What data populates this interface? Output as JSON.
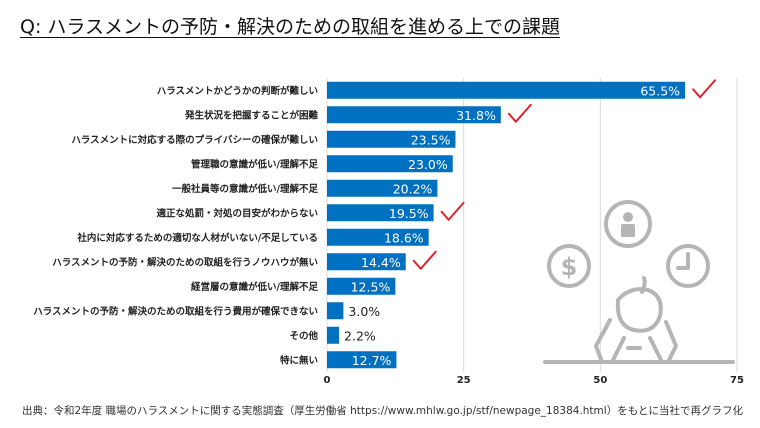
{
  "title": "Q: ハラスメントの予防・解決のための取組を進める上での課題",
  "source": "出典：令和2年度 職場のハラスメントに関する実態調査（厚生労働省 https://www.mhlw.go.jp/stf/newpage_18384.html）をもとに当社で再グラフ化",
  "colors": {
    "bar": "#0070c0",
    "check": "#e0202a",
    "illustration": "#b5b5b5",
    "grid": "#d9d9d9"
  },
  "chart_data": {
    "type": "bar",
    "orientation": "horizontal",
    "categories": [
      "ハラスメントかどうかの判断が難しい",
      "発生状況を把握することが困難",
      "ハラスメントに対応する際のプライバシーの確保が難しい",
      "管理職の意識が低い/理解不足",
      "一般社員等の意識が低い/理解不足",
      "適正な処罰・対処の目安がわからない",
      "社内に対応するための適切な人材がいない/不足している",
      "ハラスメントの予防・解決のための取組を行うノウハウが無い",
      "経営層の意識が低い/理解不足",
      "ハラスメントの予防・解決のための取組を行う費用が確保できない",
      "その他",
      "特に無い"
    ],
    "values": [
      65.5,
      31.8,
      23.5,
      23.0,
      20.2,
      19.5,
      18.6,
      14.4,
      12.5,
      3.0,
      2.2,
      12.7
    ],
    "value_labels": [
      "65.5%",
      "31.8%",
      "23.5%",
      "23.0%",
      "20.2%",
      "19.5%",
      "18.6%",
      "14.4%",
      "12.5%",
      "3.0%",
      "2.2%",
      "12.7%"
    ],
    "checked": [
      true,
      true,
      false,
      false,
      false,
      true,
      false,
      true,
      false,
      false,
      false,
      false
    ],
    "xlim": [
      0,
      75
    ],
    "xticks": [
      0,
      25,
      50,
      75
    ],
    "xtick_labels": [
      "0",
      "25",
      "50",
      "75"
    ],
    "grid": true,
    "legend": "none"
  }
}
